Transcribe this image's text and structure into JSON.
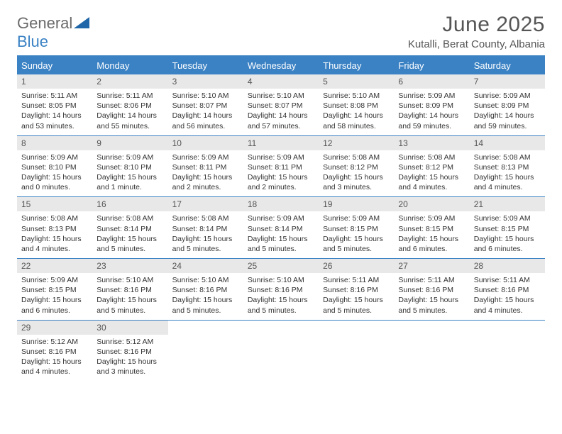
{
  "logo": {
    "part1": "General",
    "part2": "Blue"
  },
  "title": "June 2025",
  "location": "Kutalli, Berat County, Albania",
  "colors": {
    "header_bg": "#3b82c4",
    "header_text": "#ffffff",
    "daynum_bg": "#e8e8e8",
    "border": "#3b82c4",
    "title_color": "#555555",
    "body_text": "#333333",
    "logo_gray": "#6b6b6b",
    "logo_blue": "#3b82c4"
  },
  "weekdays": [
    "Sunday",
    "Monday",
    "Tuesday",
    "Wednesday",
    "Thursday",
    "Friday",
    "Saturday"
  ],
  "days": [
    {
      "n": "1",
      "sunrise": "5:11 AM",
      "sunset": "8:05 PM",
      "daylight": "14 hours and 53 minutes."
    },
    {
      "n": "2",
      "sunrise": "5:11 AM",
      "sunset": "8:06 PM",
      "daylight": "14 hours and 55 minutes."
    },
    {
      "n": "3",
      "sunrise": "5:10 AM",
      "sunset": "8:07 PM",
      "daylight": "14 hours and 56 minutes."
    },
    {
      "n": "4",
      "sunrise": "5:10 AM",
      "sunset": "8:07 PM",
      "daylight": "14 hours and 57 minutes."
    },
    {
      "n": "5",
      "sunrise": "5:10 AM",
      "sunset": "8:08 PM",
      "daylight": "14 hours and 58 minutes."
    },
    {
      "n": "6",
      "sunrise": "5:09 AM",
      "sunset": "8:09 PM",
      "daylight": "14 hours and 59 minutes."
    },
    {
      "n": "7",
      "sunrise": "5:09 AM",
      "sunset": "8:09 PM",
      "daylight": "14 hours and 59 minutes."
    },
    {
      "n": "8",
      "sunrise": "5:09 AM",
      "sunset": "8:10 PM",
      "daylight": "15 hours and 0 minutes."
    },
    {
      "n": "9",
      "sunrise": "5:09 AM",
      "sunset": "8:10 PM",
      "daylight": "15 hours and 1 minute."
    },
    {
      "n": "10",
      "sunrise": "5:09 AM",
      "sunset": "8:11 PM",
      "daylight": "15 hours and 2 minutes."
    },
    {
      "n": "11",
      "sunrise": "5:09 AM",
      "sunset": "8:11 PM",
      "daylight": "15 hours and 2 minutes."
    },
    {
      "n": "12",
      "sunrise": "5:08 AM",
      "sunset": "8:12 PM",
      "daylight": "15 hours and 3 minutes."
    },
    {
      "n": "13",
      "sunrise": "5:08 AM",
      "sunset": "8:12 PM",
      "daylight": "15 hours and 4 minutes."
    },
    {
      "n": "14",
      "sunrise": "5:08 AM",
      "sunset": "8:13 PM",
      "daylight": "15 hours and 4 minutes."
    },
    {
      "n": "15",
      "sunrise": "5:08 AM",
      "sunset": "8:13 PM",
      "daylight": "15 hours and 4 minutes."
    },
    {
      "n": "16",
      "sunrise": "5:08 AM",
      "sunset": "8:14 PM",
      "daylight": "15 hours and 5 minutes."
    },
    {
      "n": "17",
      "sunrise": "5:08 AM",
      "sunset": "8:14 PM",
      "daylight": "15 hours and 5 minutes."
    },
    {
      "n": "18",
      "sunrise": "5:09 AM",
      "sunset": "8:14 PM",
      "daylight": "15 hours and 5 minutes."
    },
    {
      "n": "19",
      "sunrise": "5:09 AM",
      "sunset": "8:15 PM",
      "daylight": "15 hours and 5 minutes."
    },
    {
      "n": "20",
      "sunrise": "5:09 AM",
      "sunset": "8:15 PM",
      "daylight": "15 hours and 6 minutes."
    },
    {
      "n": "21",
      "sunrise": "5:09 AM",
      "sunset": "8:15 PM",
      "daylight": "15 hours and 6 minutes."
    },
    {
      "n": "22",
      "sunrise": "5:09 AM",
      "sunset": "8:15 PM",
      "daylight": "15 hours and 6 minutes."
    },
    {
      "n": "23",
      "sunrise": "5:10 AM",
      "sunset": "8:16 PM",
      "daylight": "15 hours and 5 minutes."
    },
    {
      "n": "24",
      "sunrise": "5:10 AM",
      "sunset": "8:16 PM",
      "daylight": "15 hours and 5 minutes."
    },
    {
      "n": "25",
      "sunrise": "5:10 AM",
      "sunset": "8:16 PM",
      "daylight": "15 hours and 5 minutes."
    },
    {
      "n": "26",
      "sunrise": "5:11 AM",
      "sunset": "8:16 PM",
      "daylight": "15 hours and 5 minutes."
    },
    {
      "n": "27",
      "sunrise": "5:11 AM",
      "sunset": "8:16 PM",
      "daylight": "15 hours and 5 minutes."
    },
    {
      "n": "28",
      "sunrise": "5:11 AM",
      "sunset": "8:16 PM",
      "daylight": "15 hours and 4 minutes."
    },
    {
      "n": "29",
      "sunrise": "5:12 AM",
      "sunset": "8:16 PM",
      "daylight": "15 hours and 4 minutes."
    },
    {
      "n": "30",
      "sunrise": "5:12 AM",
      "sunset": "8:16 PM",
      "daylight": "15 hours and 3 minutes."
    }
  ],
  "labels": {
    "sunrise": "Sunrise: ",
    "sunset": "Sunset: ",
    "daylight": "Daylight: "
  }
}
